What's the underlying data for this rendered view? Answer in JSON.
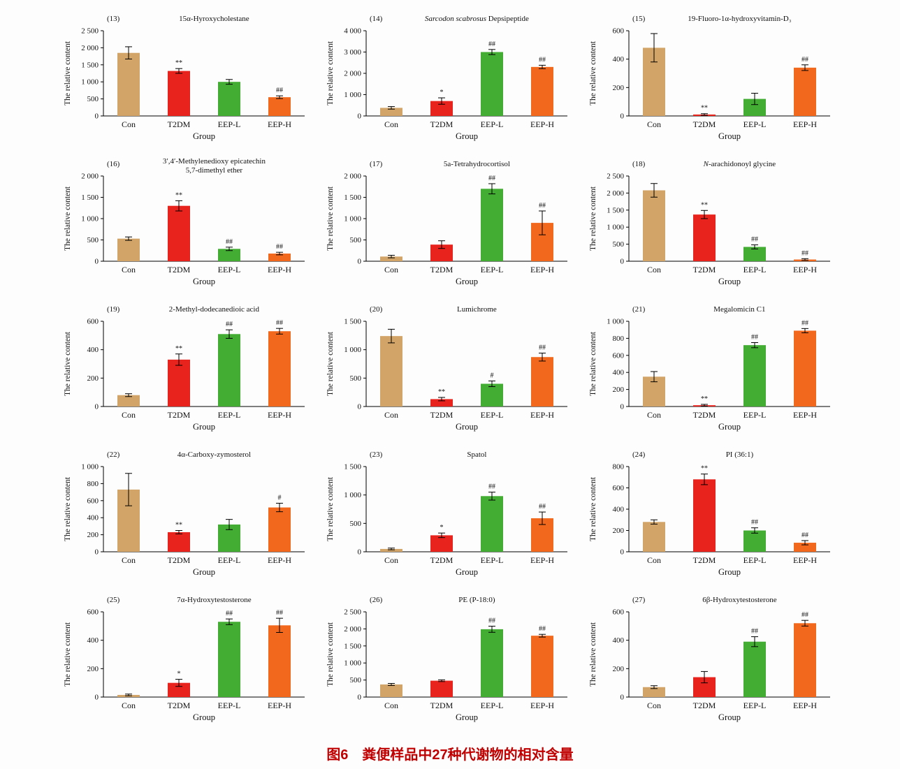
{
  "page": {
    "caption": "图6　粪便样品中27种代谢物的相对含量"
  },
  "bar_colors": [
    "#d2a467",
    "#e8221c",
    "#43ac33",
    "#f2681c"
  ],
  "categories": [
    "Con",
    "T2DM",
    "EEP-L",
    "EEP-H"
  ],
  "axis": {
    "ylabel": "The relative content",
    "xlabel": "Group"
  },
  "chart_data": [
    {
      "type": "bar",
      "panel": "(13)",
      "title_parts": [
        {
          "t": "15α-Hyroxycholestane",
          "i": false
        }
      ],
      "ymax": 2500,
      "ystep": 500,
      "values": [
        1850,
        1320,
        1000,
        550
      ],
      "errors": [
        180,
        70,
        70,
        40
      ],
      "sig": [
        "",
        "**",
        "",
        "##"
      ]
    },
    {
      "type": "bar",
      "panel": "(14)",
      "title_parts": [
        {
          "t": "Sarcodon scabrosus",
          "i": true
        },
        {
          "t": " Depsipeptide",
          "i": false
        }
      ],
      "ymax": 4000,
      "ystep": 1000,
      "values": [
        380,
        700,
        3000,
        2300
      ],
      "errors": [
        60,
        150,
        120,
        80
      ],
      "sig": [
        "",
        "*",
        "##",
        "##"
      ]
    },
    {
      "type": "bar",
      "panel": "(15)",
      "title_parts": [
        {
          "t": "19-Fluoro-1α-hydroxyvitamin-D₃",
          "i": false
        }
      ],
      "ymax": 600,
      "ystep": 200,
      "values": [
        480,
        10,
        120,
        340
      ],
      "errors": [
        100,
        6,
        40,
        20
      ],
      "sig": [
        "",
        "**",
        "",
        "##"
      ]
    },
    {
      "type": "bar",
      "panel": "(16)",
      "title_parts": [
        {
          "t": "3′,4′-Methylenedioxy epicatechin",
          "i": false
        }
      ],
      "title2": "5,7-dimethyl ether",
      "ymax": 2000,
      "ystep": 500,
      "values": [
        530,
        1300,
        290,
        180
      ],
      "errors": [
        40,
        120,
        40,
        30
      ],
      "sig": [
        "",
        "**",
        "##",
        "##"
      ]
    },
    {
      "type": "bar",
      "panel": "(17)",
      "title_parts": [
        {
          "t": "5a-Tetrahydrocortisol",
          "i": false
        }
      ],
      "ymax": 2000,
      "ystep": 500,
      "values": [
        110,
        390,
        1700,
        900
      ],
      "errors": [
        30,
        90,
        120,
        280
      ],
      "sig": [
        "",
        "",
        "##",
        "##"
      ]
    },
    {
      "type": "bar",
      "panel": "(18)",
      "title_parts": [
        {
          "t": "N",
          "i": true
        },
        {
          "t": "-arachidonoyl glycine",
          "i": false
        }
      ],
      "ymax": 2500,
      "ystep": 500,
      "values": [
        2080,
        1370,
        420,
        50
      ],
      "errors": [
        200,
        120,
        60,
        25
      ],
      "sig": [
        "",
        "**",
        "##",
        "##"
      ]
    },
    {
      "type": "bar",
      "panel": "(19)",
      "title_parts": [
        {
          "t": "2-Methyl-dodecanedioic acid",
          "i": false
        }
      ],
      "ymax": 600,
      "ystep": 200,
      "values": [
        80,
        330,
        510,
        530
      ],
      "errors": [
        10,
        40,
        30,
        20
      ],
      "sig": [
        "",
        "**",
        "##",
        "##"
      ]
    },
    {
      "type": "bar",
      "panel": "(20)",
      "title_parts": [
        {
          "t": "Lumichrome",
          "i": false
        }
      ],
      "ymax": 1500,
      "ystep": 500,
      "values": [
        1240,
        130,
        400,
        870
      ],
      "errors": [
        120,
        30,
        50,
        70
      ],
      "sig": [
        "",
        "**",
        "#",
        "##"
      ]
    },
    {
      "type": "bar",
      "panel": "(21)",
      "title_parts": [
        {
          "t": "Megalomicin C1",
          "i": false
        }
      ],
      "ymax": 1000,
      "ystep": 200,
      "values": [
        350,
        15,
        720,
        890
      ],
      "errors": [
        60,
        10,
        30,
        25
      ],
      "sig": [
        "",
        "**",
        "##",
        "##"
      ]
    },
    {
      "type": "bar",
      "panel": "(22)",
      "title_parts": [
        {
          "t": "4α-Carboxy-zymosterol",
          "i": false
        }
      ],
      "ymax": 1000,
      "ystep": 200,
      "values": [
        730,
        230,
        320,
        520
      ],
      "errors": [
        190,
        20,
        60,
        50
      ],
      "sig": [
        "",
        "**",
        "",
        "#"
      ]
    },
    {
      "type": "bar",
      "panel": "(23)",
      "title_parts": [
        {
          "t": "Spatol",
          "i": false
        }
      ],
      "ymax": 1500,
      "ystep": 500,
      "values": [
        50,
        290,
        980,
        590
      ],
      "errors": [
        15,
        40,
        70,
        110
      ],
      "sig": [
        "",
        "*",
        "##",
        "##"
      ]
    },
    {
      "type": "bar",
      "panel": "(24)",
      "title_parts": [
        {
          "t": "PI (36:1)",
          "i": false
        }
      ],
      "ymax": 800,
      "ystep": 200,
      "values": [
        280,
        680,
        200,
        85
      ],
      "errors": [
        20,
        50,
        25,
        20
      ],
      "sig": [
        "",
        "**",
        "##",
        "##"
      ]
    },
    {
      "type": "bar",
      "panel": "(25)",
      "title_parts": [
        {
          "t": "7α-Hydroxytestosterone",
          "i": false
        }
      ],
      "ymax": 600,
      "ystep": 200,
      "values": [
        15,
        100,
        530,
        505
      ],
      "errors": [
        6,
        25,
        20,
        50
      ],
      "sig": [
        "",
        "*",
        "##",
        "##"
      ]
    },
    {
      "type": "bar",
      "panel": "(26)",
      "title_parts": [
        {
          "t": "PE (P-18:0)",
          "i": false
        }
      ],
      "ymax": 2500,
      "ystep": 500,
      "values": [
        370,
        480,
        1990,
        1800
      ],
      "errors": [
        30,
        25,
        90,
        40
      ],
      "sig": [
        "",
        "",
        "##",
        "##"
      ]
    },
    {
      "type": "bar",
      "panel": "(27)",
      "title_parts": [
        {
          "t": "6β-Hydroxytestosterone",
          "i": false
        }
      ],
      "ymax": 600,
      "ystep": 200,
      "values": [
        70,
        140,
        390,
        520
      ],
      "errors": [
        10,
        40,
        35,
        20
      ],
      "sig": [
        "",
        "",
        "##",
        "##"
      ]
    }
  ]
}
